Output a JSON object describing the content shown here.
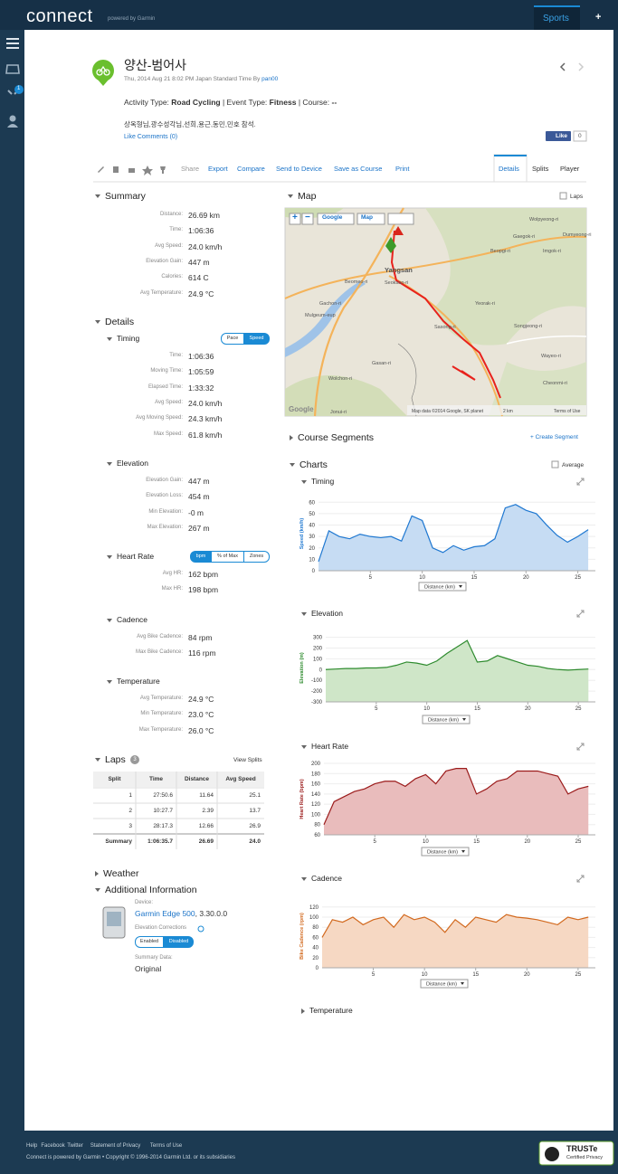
{
  "header": {
    "logo": "connect",
    "powered": "powered by Garmin",
    "sports": "Sports",
    "plus": "+"
  },
  "sidebar": {
    "badge": "1"
  },
  "activity": {
    "title": "양산-범어사",
    "date": "Thu, 2014 Aug 21 8:02 PM Japan Standard Time By",
    "user": "pan00",
    "type_label": "Activity Type:",
    "type": "Road Cycling",
    "event_label": "| Event Type:",
    "event": "Fitness",
    "course_label": "| Course:",
    "course": "--",
    "description": "상옥형님,광수성각님,선희,용근,동민,민호 참석.",
    "like": "Like",
    "comments": "Comments (0)",
    "fb_like": "Like",
    "fb_count": "0"
  },
  "toolbar": {
    "actions": [
      "Share",
      "Export",
      "Compare",
      "Send to Device",
      "Save as Course",
      "Print"
    ],
    "tabs": [
      "Details",
      "Splits",
      "Player"
    ]
  },
  "summary": {
    "title": "Summary",
    "rows": [
      [
        "Distance:",
        "26.69 km"
      ],
      [
        "Time:",
        "1:06:36"
      ],
      [
        "Avg Speed:",
        "24.0 km/h"
      ],
      [
        "Elevation Gain:",
        "447 m"
      ],
      [
        "Calories:",
        "614 C"
      ],
      [
        "Avg Temperature:",
        "24.9 °C"
      ]
    ]
  },
  "details": {
    "title": "Details",
    "sections": [
      {
        "title": "Timing",
        "toggles": [
          "Pace",
          "Speed"
        ],
        "active_toggle": 1,
        "rows": [
          [
            "Time:",
            "1:06:36"
          ],
          [
            "Moving Time:",
            "1:05:59"
          ],
          [
            "Elapsed Time:",
            "1:33:32"
          ],
          [
            "Avg Speed:",
            "24.0 km/h"
          ],
          [
            "Avg Moving Speed:",
            "24.3 km/h"
          ],
          [
            "Max Speed:",
            "61.8 km/h"
          ]
        ]
      },
      {
        "title": "Elevation",
        "rows": [
          [
            "Elevation Gain:",
            "447 m"
          ],
          [
            "Elevation Loss:",
            "454 m"
          ],
          [
            "Min Elevation:",
            "-0 m"
          ],
          [
            "Max Elevation:",
            "267 m"
          ]
        ]
      },
      {
        "title": "Heart Rate",
        "toggles": [
          "bpm",
          "% of Max",
          "Zones"
        ],
        "active_toggle": 0,
        "rows": [
          [
            "Avg HR:",
            "162 bpm"
          ],
          [
            "Max HR:",
            "198 bpm"
          ]
        ]
      },
      {
        "title": "Cadence",
        "rows": [
          [
            "Avg Bike Cadence:",
            "84 rpm"
          ],
          [
            "Max Bike Cadence:",
            "116 rpm"
          ]
        ]
      },
      {
        "title": "Temperature",
        "rows": [
          [
            "Avg Temperature:",
            "24.9 °C"
          ],
          [
            "Min Temperature:",
            "23.0 °C"
          ],
          [
            "Max Temperature:",
            "26.0 °C"
          ]
        ]
      }
    ]
  },
  "laps": {
    "title": "Laps",
    "count": "3",
    "view_splits": "View Splits",
    "headers": [
      "Split",
      "Time",
      "Distance",
      "Avg Speed"
    ],
    "rows": [
      [
        "1",
        "27:50.6",
        "11.64",
        "25.1"
      ],
      [
        "2",
        "10:27.7",
        "2.39",
        "13.7"
      ],
      [
        "3",
        "28:17.3",
        "12.66",
        "26.9"
      ],
      [
        "Summary",
        "1:06:35.7",
        "26.69",
        "24.0"
      ]
    ]
  },
  "weather": {
    "title": "Weather"
  },
  "additional": {
    "title": "Additional Information",
    "device_label": "Device:",
    "device": "Garmin Edge 500",
    "version": ", 3.30.0.0",
    "elevation_label": "Elevation Corrections",
    "enabled": "Enabled",
    "disabled": "Disabled",
    "summary_label": "Summary Data:",
    "summary": "Original"
  },
  "map": {
    "title": "Map",
    "laps": "Laps",
    "zoom_in": "+",
    "zoom_out": "−",
    "provider": "Google",
    "mode": "Map",
    "google": "Google",
    "attribution": "Map data ©2014 Google, SK planet",
    "scale": "2 km",
    "terms": "Terms of Use",
    "labels": [
      "Wolpyeong-ri",
      "Gaegok-ri",
      "Dumyeong-ri",
      "Beopgi-ri",
      "Imgok-ri",
      "Yangsan",
      "Beomeo-ri",
      "Seoksan-ri",
      "Gachon-ri",
      "Mulgeum-eup",
      "Yeorak-ri",
      "Sasong-ri",
      "Songjeong-ri",
      "Wayeo-ri",
      "Gasan-ri",
      "Wolchon-ri",
      "Cheonmi-ri",
      "Jonui-ri"
    ]
  },
  "charts_section": {
    "course_segments": "Course Segments",
    "create_segment": "+ Create Segment",
    "title": "Charts",
    "average": "Average",
    "temperature": "Temperature"
  },
  "chart_data": [
    {
      "type": "area",
      "title": "Timing",
      "y_label": "Speed (km/h)",
      "x_label": "Distance (km)",
      "color": "#1f78d1",
      "fill": "#c6dcf3",
      "xlim": [
        0,
        26.69
      ],
      "xticks": [
        5,
        10,
        15,
        20,
        25
      ],
      "ylim": [
        0,
        65
      ],
      "yticks": [
        0,
        10,
        20,
        30,
        40,
        50,
        60
      ],
      "x": [
        0,
        1,
        2,
        3,
        4,
        5,
        6,
        7,
        8,
        9,
        10,
        11,
        12,
        13,
        14,
        15,
        16,
        17,
        18,
        19,
        20,
        21,
        22,
        23,
        24,
        25,
        26
      ],
      "values": [
        8,
        35,
        30,
        28,
        32,
        30,
        29,
        30,
        26,
        48,
        44,
        20,
        16,
        22,
        18,
        21,
        22,
        28,
        55,
        58,
        53,
        50,
        40,
        31,
        25,
        30,
        36
      ]
    },
    {
      "type": "area",
      "title": "Elevation",
      "y_label": "Elevation (m)",
      "x_label": "Distance (km)",
      "color": "#2e8b2e",
      "fill": "#cfe6c8",
      "xlim": [
        0,
        26.69
      ],
      "xticks": [
        5,
        10,
        15,
        20,
        25
      ],
      "ylim": [
        -300,
        330
      ],
      "yticks": [
        -300,
        -200,
        -100,
        0,
        100,
        200,
        300
      ],
      "x": [
        0,
        1,
        2,
        3,
        4,
        5,
        6,
        7,
        8,
        9,
        10,
        11,
        12,
        13,
        14,
        15,
        16,
        17,
        18,
        19,
        20,
        21,
        22,
        23,
        24,
        25,
        26
      ],
      "values": [
        0,
        5,
        10,
        10,
        15,
        15,
        20,
        40,
        70,
        60,
        40,
        80,
        150,
        210,
        270,
        70,
        80,
        130,
        100,
        70,
        40,
        30,
        10,
        0,
        -5,
        0,
        5
      ]
    },
    {
      "type": "area",
      "title": "Heart Rate",
      "y_label": "Heart Rate (bpm)",
      "x_label": "Distance (km)",
      "color": "#9b1b1b",
      "fill": "#e9bcbc",
      "xlim": [
        0,
        26.69
      ],
      "xticks": [
        5,
        10,
        15,
        20,
        25
      ],
      "ylim": [
        60,
        200
      ],
      "yticks": [
        60,
        80,
        100,
        120,
        140,
        160,
        180,
        200
      ],
      "x": [
        0,
        1,
        2,
        3,
        4,
        5,
        6,
        7,
        8,
        9,
        10,
        11,
        12,
        13,
        14,
        15,
        16,
        17,
        18,
        19,
        20,
        21,
        22,
        23,
        24,
        25,
        26
      ],
      "values": [
        80,
        125,
        135,
        145,
        150,
        160,
        165,
        165,
        155,
        170,
        178,
        160,
        185,
        190,
        190,
        140,
        150,
        165,
        170,
        185,
        185,
        185,
        180,
        175,
        140,
        150,
        155
      ]
    },
    {
      "type": "area",
      "title": "Cadence",
      "y_label": "Bike Cadence (rpm)",
      "x_label": "Distance (km)",
      "color": "#d2691e",
      "fill": "#f6d8c3",
      "xlim": [
        0,
        26.69
      ],
      "xticks": [
        5,
        10,
        15,
        20,
        25
      ],
      "ylim": [
        0,
        125
      ],
      "yticks": [
        0,
        20,
        40,
        60,
        80,
        100,
        120
      ],
      "x": [
        0,
        1,
        2,
        3,
        4,
        5,
        6,
        7,
        8,
        9,
        10,
        11,
        12,
        13,
        14,
        15,
        16,
        17,
        18,
        19,
        20,
        21,
        22,
        23,
        24,
        25,
        26
      ],
      "values": [
        60,
        95,
        90,
        100,
        85,
        95,
        100,
        80,
        105,
        95,
        100,
        90,
        70,
        95,
        80,
        100,
        95,
        90,
        105,
        100,
        98,
        95,
        90,
        85,
        100,
        95,
        100
      ]
    }
  ],
  "footer": {
    "links": [
      "Help",
      "Facebook",
      "Twitter",
      "Statement of Privacy",
      "Terms of Use"
    ],
    "copyright": "Connect is powered by Garmin • Copyright © 1996-2014 Garmin Ltd. or its subsidiaries",
    "truste": "TRUSTe",
    "certified": "Certified Privacy"
  }
}
